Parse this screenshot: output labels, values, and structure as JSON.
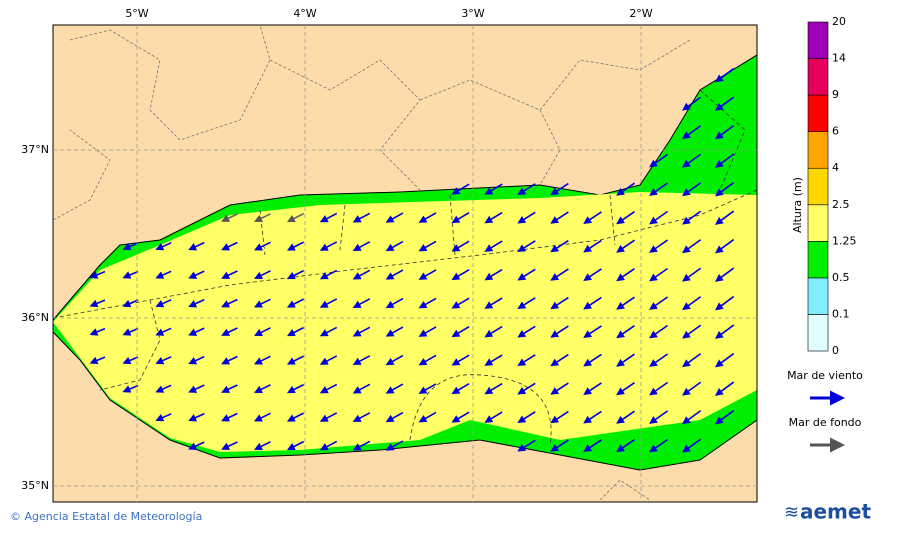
{
  "map": {
    "lon_labels": [
      "5°W",
      "4°W",
      "3°W",
      "2°W"
    ],
    "lat_labels": [
      "37°N",
      "36°N",
      "35°N"
    ]
  },
  "colorbar": {
    "title": "Altura (m)",
    "levels": [
      0,
      0.1,
      0.5,
      1.25,
      2.5,
      4,
      6,
      9,
      14,
      20
    ],
    "colors": [
      "#e0ffff",
      "#80eeff",
      "#00ee00",
      "#ffff66",
      "#ffd700",
      "#ffa500",
      "#ff0000",
      "#e6005c",
      "#a000b8"
    ]
  },
  "legend": [
    {
      "label": "Mar de viento",
      "color": "#0000dd"
    },
    {
      "label": "Mar de fondo",
      "color": "#555555"
    }
  ],
  "footer": {
    "credit": "© Agencia Estatal de Meteorología",
    "logo": "aemet"
  }
}
